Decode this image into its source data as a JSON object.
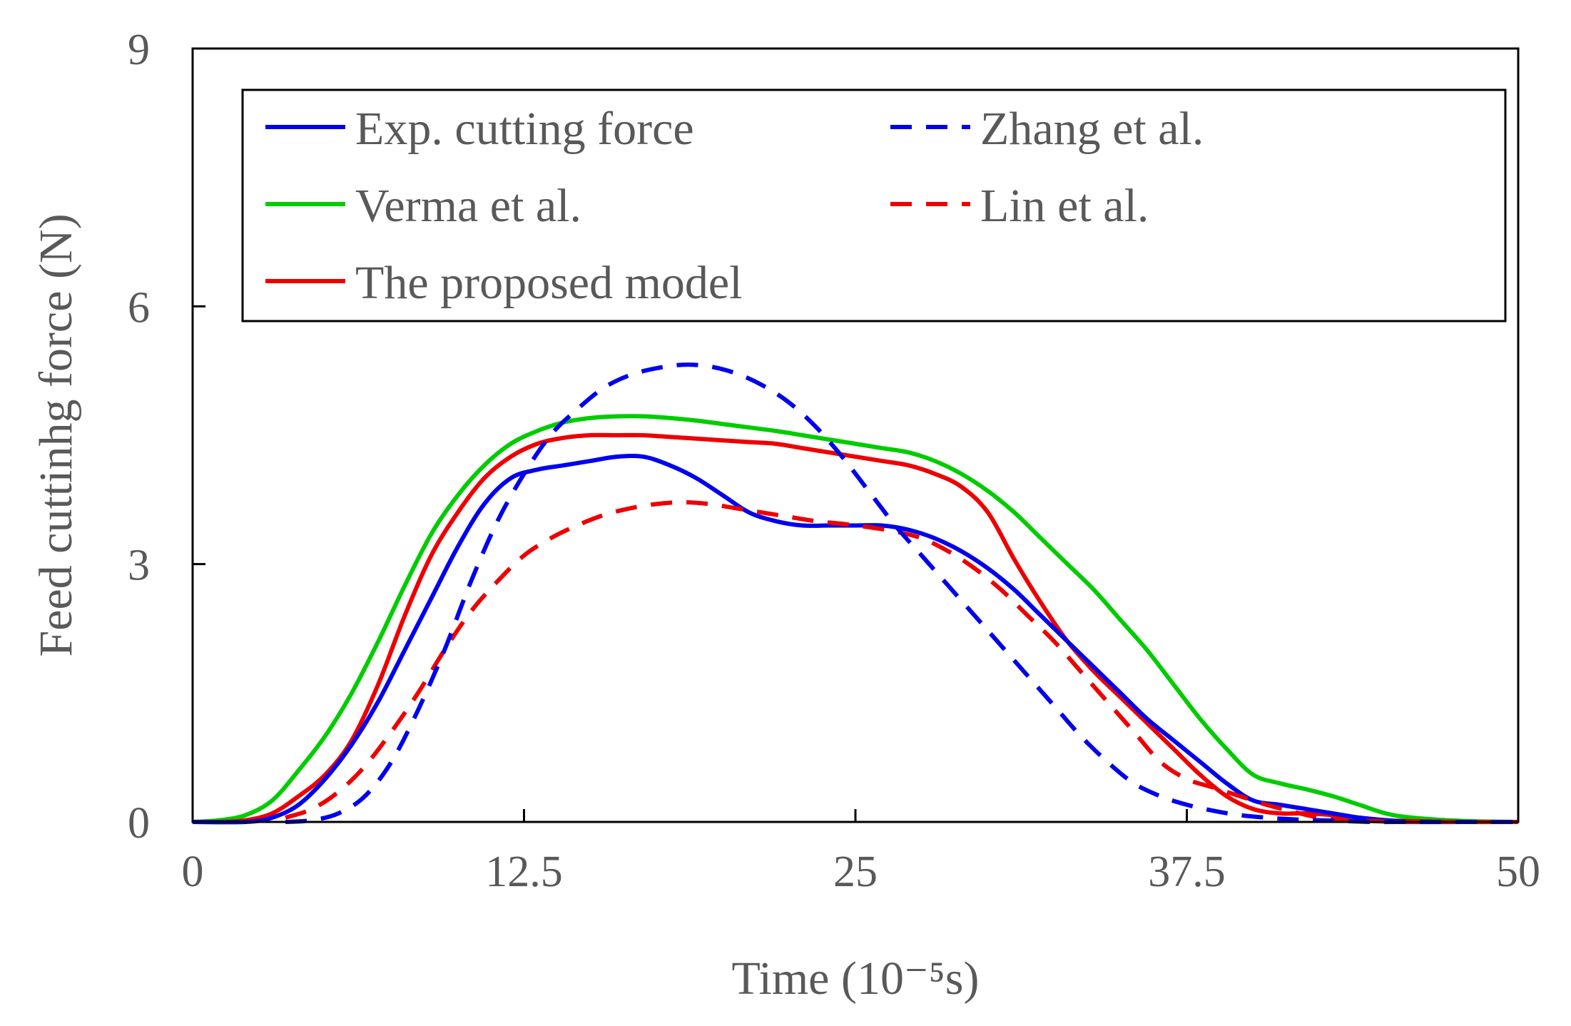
{
  "chart_data": {
    "type": "line",
    "title": "",
    "xlabel": "Time (10⁻⁵s)",
    "ylabel": "Feed cuttinhg force (N)",
    "xlim": [
      0,
      50
    ],
    "ylim": [
      0,
      9
    ],
    "xticks": [
      0,
      12.5,
      25,
      37.5,
      50
    ],
    "xtick_labels": [
      "0",
      "12.5",
      "25",
      "37.5",
      "50"
    ],
    "yticks": [
      0,
      3,
      6,
      9
    ],
    "ytick_labels": [
      "0",
      "3",
      "6",
      "9"
    ],
    "grid": false,
    "legend_position": "top",
    "series": [
      {
        "name": "Exp. cutting force",
        "color": "#0000ee",
        "dash": "solid",
        "x": [
          0,
          2,
          3,
          4,
          5,
          6,
          7,
          8,
          9,
          10,
          11,
          12,
          13,
          14,
          15,
          16,
          17,
          18,
          19,
          20,
          21,
          22,
          23,
          24,
          25,
          26,
          27,
          28,
          29,
          30,
          31,
          32,
          33,
          34,
          35,
          36,
          37,
          38,
          39,
          40,
          41,
          42,
          43,
          44,
          45,
          46,
          48,
          50
        ],
        "y": [
          0,
          0,
          0.05,
          0.2,
          0.5,
          0.9,
          1.4,
          2.0,
          2.6,
          3.2,
          3.7,
          4.0,
          4.1,
          4.15,
          4.2,
          4.25,
          4.25,
          4.15,
          4.0,
          3.8,
          3.6,
          3.5,
          3.45,
          3.45,
          3.45,
          3.45,
          3.4,
          3.3,
          3.15,
          2.95,
          2.7,
          2.4,
          2.1,
          1.8,
          1.5,
          1.2,
          0.95,
          0.7,
          0.45,
          0.25,
          0.2,
          0.15,
          0.1,
          0.05,
          0.02,
          0,
          0,
          0
        ]
      },
      {
        "name": "Zhang et al.",
        "color": "#0000ee",
        "dash": "dashed",
        "x": [
          3.5,
          4.5,
          5.5,
          6.5,
          7.5,
          8.5,
          9.5,
          10.5,
          11.5,
          12.5,
          13.5,
          14.5,
          15.5,
          16.5,
          17.5,
          18.5,
          19.5,
          20.5,
          21.5,
          22.5,
          23.5,
          24.5,
          25.5,
          26.5,
          27.5,
          28.5,
          29.5,
          30.5,
          31.5,
          32.5,
          33.5,
          34.5,
          35.5,
          36.5,
          37.5,
          38.5,
          39.5,
          40.5,
          41.5,
          42.5,
          43.5,
          44.5,
          45.5,
          46.5,
          48,
          50
        ],
        "y": [
          0,
          0.02,
          0.1,
          0.3,
          0.7,
          1.3,
          2.0,
          2.8,
          3.5,
          4.05,
          4.5,
          4.8,
          5.05,
          5.2,
          5.28,
          5.32,
          5.3,
          5.22,
          5.08,
          4.88,
          4.6,
          4.25,
          3.85,
          3.45,
          3.1,
          2.75,
          2.4,
          2.05,
          1.7,
          1.35,
          1.0,
          0.7,
          0.45,
          0.3,
          0.2,
          0.13,
          0.08,
          0.05,
          0.03,
          0.02,
          0.01,
          0,
          0,
          0,
          0,
          0
        ]
      },
      {
        "name": "Verma et al.",
        "color": "#00cc00",
        "dash": "solid",
        "x": [
          0,
          1,
          2,
          3,
          4,
          5,
          6,
          7,
          8,
          9,
          10,
          11,
          12,
          13,
          14,
          15,
          16,
          17,
          18,
          19,
          20,
          21,
          22,
          23,
          24,
          25,
          26,
          27,
          28,
          29,
          30,
          31,
          32,
          33,
          34,
          35,
          36,
          37,
          38,
          39,
          40,
          41,
          42,
          43,
          44,
          45,
          46,
          48,
          50
        ],
        "y": [
          0,
          0.02,
          0.08,
          0.25,
          0.6,
          1.0,
          1.5,
          2.1,
          2.75,
          3.35,
          3.8,
          4.15,
          4.4,
          4.55,
          4.65,
          4.7,
          4.72,
          4.72,
          4.7,
          4.67,
          4.63,
          4.59,
          4.55,
          4.5,
          4.45,
          4.4,
          4.35,
          4.3,
          4.2,
          4.05,
          3.85,
          3.6,
          3.3,
          3.0,
          2.7,
          2.35,
          2.0,
          1.6,
          1.2,
          0.85,
          0.55,
          0.45,
          0.38,
          0.3,
          0.2,
          0.1,
          0.05,
          0.01,
          0
        ]
      },
      {
        "name": "Lin et al.",
        "color": "#ee0000",
        "dash": "dashed",
        "x": [
          3.5,
          4.5,
          5.5,
          6.5,
          7.5,
          8.5,
          9.5,
          10.5,
          11.5,
          12.5,
          13.5,
          14.5,
          15.5,
          16.5,
          17.5,
          18.5,
          19.5,
          20.5,
          21.5,
          22.5,
          23.5,
          24.5,
          25.5,
          26.5,
          27.5,
          28.5,
          29.5,
          30.5,
          31.5,
          32.5,
          33.5,
          34.5,
          35.5,
          36.5,
          37.5,
          38.5,
          39.5,
          40.5,
          41.5,
          42.5,
          43.5,
          44.5,
          45.5,
          46.5,
          48,
          50
        ],
        "y": [
          0.05,
          0.15,
          0.35,
          0.65,
          1.05,
          1.5,
          2.0,
          2.45,
          2.8,
          3.1,
          3.3,
          3.45,
          3.57,
          3.65,
          3.7,
          3.72,
          3.7,
          3.65,
          3.6,
          3.55,
          3.5,
          3.47,
          3.43,
          3.38,
          3.3,
          3.15,
          2.95,
          2.7,
          2.4,
          2.1,
          1.75,
          1.4,
          1.05,
          0.7,
          0.5,
          0.4,
          0.3,
          0.2,
          0.12,
          0.05,
          0.02,
          0.01,
          0,
          0,
          0,
          0
        ]
      },
      {
        "name": "The proposed model",
        "color": "#ee0000",
        "dash": "solid",
        "x": [
          0,
          1,
          2,
          3,
          4,
          5,
          6,
          7,
          8,
          9,
          10,
          11,
          12,
          13,
          14,
          15,
          16,
          17,
          18,
          19,
          20,
          21,
          22,
          23,
          24,
          25,
          26,
          27,
          28,
          29,
          30,
          31,
          32,
          33,
          34,
          35,
          36,
          37,
          38,
          39,
          40,
          41,
          42,
          43,
          44,
          45,
          46,
          48,
          50
        ],
        "y": [
          0,
          0,
          0.02,
          0.1,
          0.3,
          0.55,
          0.95,
          1.6,
          2.4,
          3.1,
          3.6,
          4.0,
          4.25,
          4.4,
          4.47,
          4.5,
          4.5,
          4.5,
          4.48,
          4.46,
          4.44,
          4.42,
          4.4,
          4.35,
          4.3,
          4.25,
          4.2,
          4.15,
          4.05,
          3.9,
          3.6,
          3.05,
          2.55,
          2.1,
          1.75,
          1.45,
          1.15,
          0.85,
          0.55,
          0.3,
          0.15,
          0.1,
          0.1,
          0.08,
          0.05,
          0.02,
          0.01,
          0,
          0
        ]
      }
    ]
  }
}
